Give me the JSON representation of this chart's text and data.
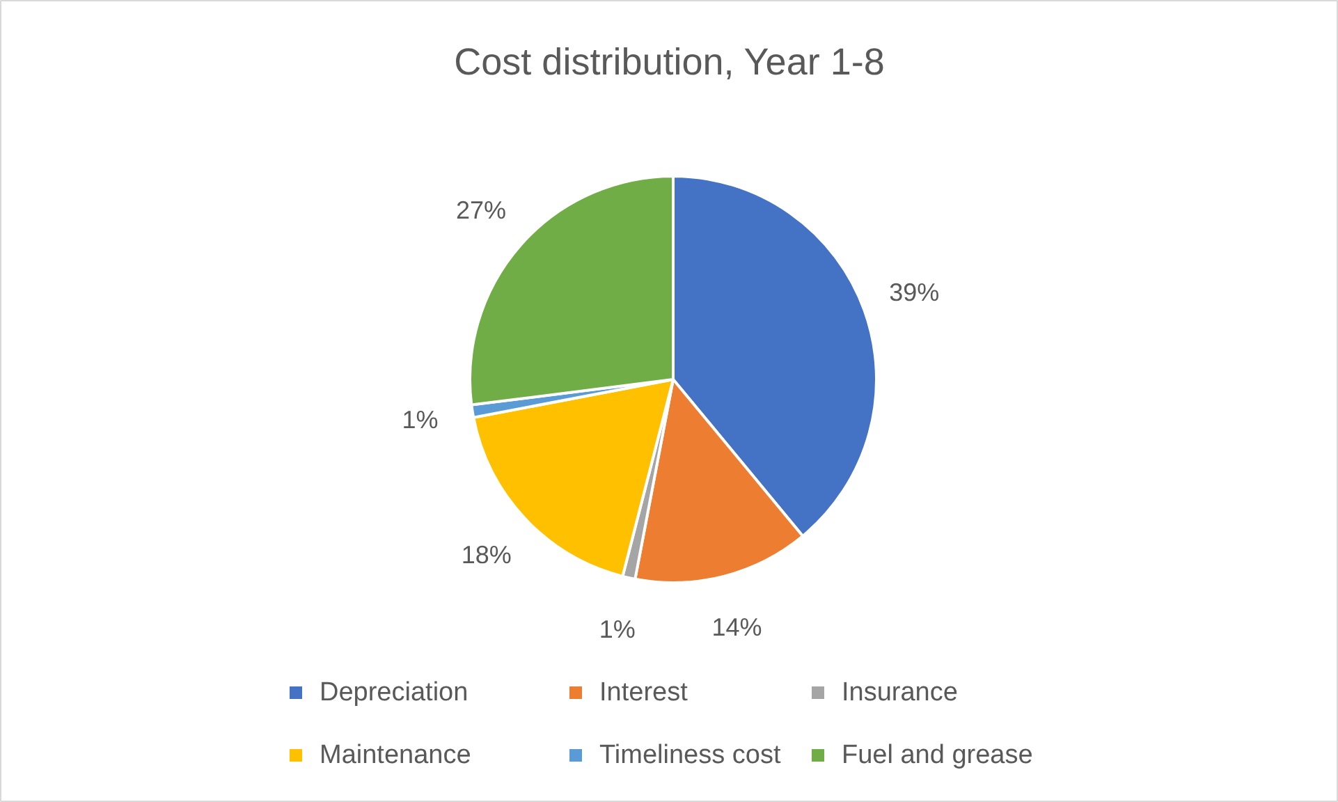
{
  "chart_data": {
    "type": "pie",
    "title": "Cost distribution, Year 1-8",
    "categories": [
      "Depreciation",
      "Interest",
      "Insurance",
      "Maintenance",
      "Timeliness cost",
      "Fuel and grease"
    ],
    "values": [
      39,
      14,
      1,
      18,
      1,
      27
    ],
    "colors": [
      "#4472c4",
      "#ed7d31",
      "#a5a5a5",
      "#ffc000",
      "#5b9bd5",
      "#70ad47"
    ],
    "value_labels": [
      "39%",
      "14%",
      "1%",
      "18%",
      "1%",
      "27%"
    ],
    "legend": "bottom"
  }
}
